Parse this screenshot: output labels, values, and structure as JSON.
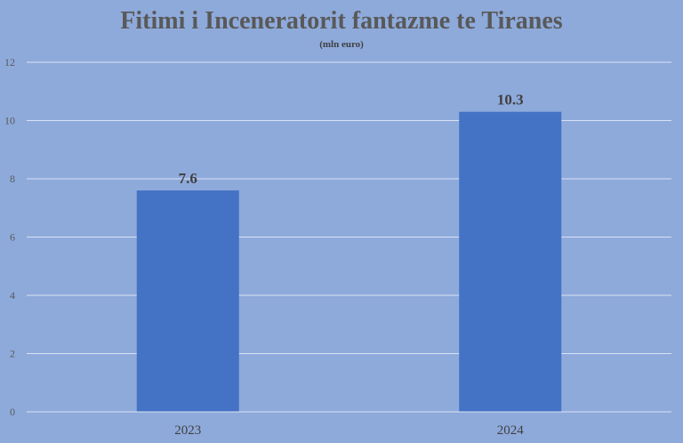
{
  "chart_data": {
    "type": "bar",
    "title": "Fitimi i Inceneratorit fantazme te Tiranes",
    "subtitle": "(mln euro)",
    "categories": [
      "2023",
      "2024"
    ],
    "values": [
      7.6,
      10.3
    ],
    "data_labels": [
      "7.6",
      "10.3"
    ],
    "xlabel": "",
    "ylabel": "",
    "ylim": [
      0,
      12
    ],
    "yticks": [
      0,
      2,
      4,
      6,
      8,
      10,
      12
    ],
    "grid": true,
    "legend": "none",
    "colors": {
      "background": "#8eaadb",
      "bar": "#4472c4",
      "gridline": "#d9e2f3",
      "title": "#595959"
    }
  }
}
